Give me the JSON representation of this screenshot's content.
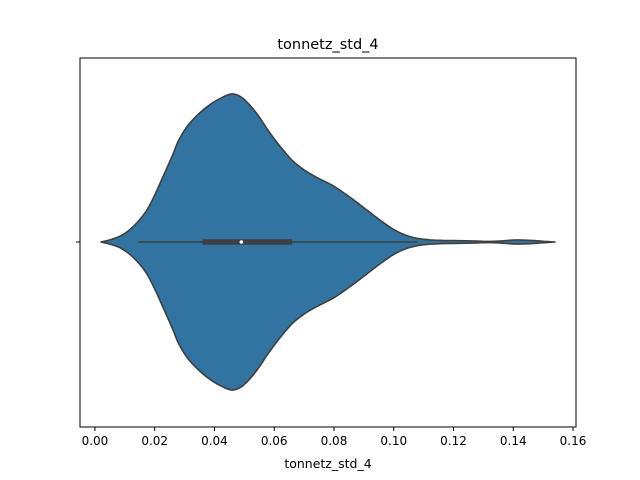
{
  "chart_data": {
    "type": "violin",
    "title": "tonnetz_std_4",
    "xlabel": "tonnetz_std_4",
    "ylabel": "",
    "xlim": [
      -0.005,
      0.161
    ],
    "x_ticks": [
      0.0,
      0.02,
      0.04,
      0.06,
      0.08,
      0.1,
      0.12,
      0.14,
      0.16
    ],
    "x_tick_labels": [
      "0.00",
      "0.02",
      "0.04",
      "0.06",
      "0.08",
      "0.10",
      "0.12",
      "0.14",
      "0.16"
    ],
    "grid": false,
    "color": "#3274a1",
    "outline_color": "#3f3f3f",
    "box": {
      "whisker_low": 0.0145,
      "q1": 0.036,
      "median": 0.049,
      "q3": 0.066,
      "whisker_high": 0.108
    },
    "density_profile": {
      "x": [
        0.002,
        0.005,
        0.009,
        0.013,
        0.017,
        0.02,
        0.023,
        0.026,
        0.028,
        0.031,
        0.035,
        0.039,
        0.043,
        0.046,
        0.049,
        0.052,
        0.055,
        0.058,
        0.062,
        0.066,
        0.07,
        0.074,
        0.08,
        0.086,
        0.091,
        0.096,
        0.1,
        0.104,
        0.108,
        0.112,
        0.116,
        0.12,
        0.124,
        0.128,
        0.132,
        0.136,
        0.14,
        0.143,
        0.147,
        0.151,
        0.154
      ],
      "half_width": [
        0.0,
        0.06,
        0.19,
        0.45,
        0.85,
        1.32,
        1.88,
        2.45,
        2.86,
        3.27,
        3.63,
        3.9,
        4.09,
        4.17,
        4.08,
        3.84,
        3.52,
        3.14,
        2.69,
        2.3,
        2.03,
        1.83,
        1.57,
        1.22,
        0.9,
        0.58,
        0.35,
        0.19,
        0.1,
        0.06,
        0.045,
        0.04,
        0.035,
        0.025,
        0.015,
        0.03,
        0.055,
        0.055,
        0.04,
        0.015,
        0.0
      ]
    }
  }
}
